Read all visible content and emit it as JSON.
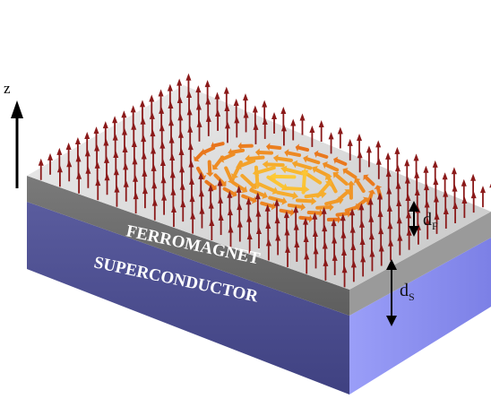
{
  "axis": {
    "label": "z"
  },
  "layers": {
    "ferromagnet": {
      "label": "FERROMAGNET"
    },
    "superconductor": {
      "label": "SUPERCONDUCTOR"
    }
  },
  "dimensions": {
    "ferromagnet_thickness": {
      "symbol": "d",
      "subscript": "F"
    },
    "superconductor_thickness": {
      "symbol": "d",
      "subscript": "S"
    }
  },
  "colors": {
    "ferromagnet_top": "#d4d4d4",
    "ferromagnet_front": "#6f6f6f",
    "ferromagnet_right": "#9a9a9a",
    "superconductor_front": "#4b4d8f",
    "superconductor_right": "#8b8ff0",
    "background_spin": "#8b1a1a",
    "skyrmion_core": "#ffd43a",
    "skyrmion_rim": "#e8731c"
  },
  "icons": {
    "z_axis": "up-arrow-icon",
    "spin": "arrow-spin-icon",
    "thickness_marker": "double-headed-arrow-icon"
  }
}
